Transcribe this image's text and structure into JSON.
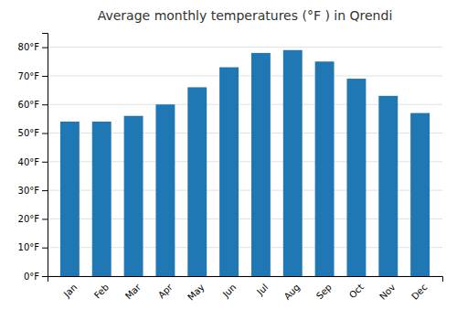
{
  "chart_data": {
    "type": "bar",
    "title": "Average monthly temperatures (°F ) in Qrendi",
    "categories": [
      "Jan",
      "Feb",
      "Mar",
      "Apr",
      "May",
      "Jun",
      "Jul",
      "Aug",
      "Sep",
      "Oct",
      "Nov",
      "Dec"
    ],
    "values": [
      54,
      54,
      56,
      60,
      66,
      73,
      78,
      79,
      75,
      69,
      63,
      57
    ],
    "ylim": [
      0,
      85
    ],
    "yticks": [
      {
        "value": 0,
        "label": "0°F"
      },
      {
        "value": 10,
        "label": "10°F"
      },
      {
        "value": 20,
        "label": "20°F"
      },
      {
        "value": 30,
        "label": "30°F"
      },
      {
        "value": 40,
        "label": "40°F"
      },
      {
        "value": 50,
        "label": "50°F"
      },
      {
        "value": 60,
        "label": "60°F"
      },
      {
        "value": 70,
        "label": "70°F"
      },
      {
        "value": 80,
        "label": "80°F"
      }
    ],
    "grid": true
  }
}
